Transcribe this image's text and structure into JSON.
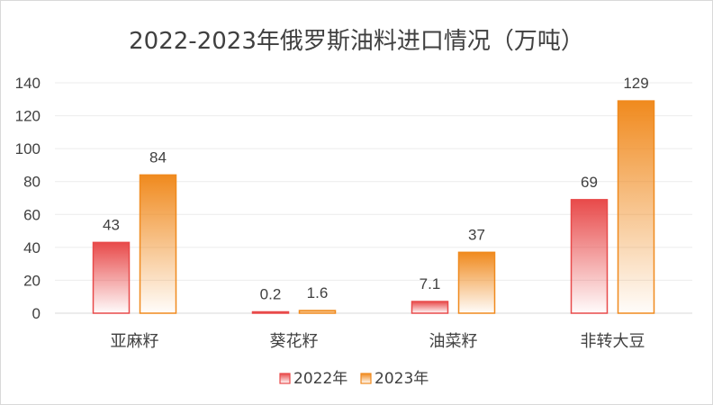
{
  "chart_data": {
    "type": "bar",
    "title": "2022-2023年俄罗斯油料进口情况（万吨）",
    "categories": [
      "亚麻籽",
      "葵花籽",
      "油菜籽",
      "非转大豆"
    ],
    "series": [
      {
        "name": "2022年",
        "values": [
          43,
          0.2,
          7.1,
          69
        ],
        "labels": [
          "43",
          "0.2",
          "7.1",
          "69"
        ],
        "color": "#e84a4a"
      },
      {
        "name": "2023年",
        "values": [
          84,
          1.6,
          37,
          129
        ],
        "labels": [
          "84",
          "1.6",
          "37",
          "129"
        ],
        "color": "#f08a1e"
      }
    ],
    "ylim": [
      0,
      140
    ],
    "yticks": [
      "0",
      "20",
      "40",
      "60",
      "80",
      "100",
      "120",
      "140"
    ],
    "grid": true,
    "legend_position": "bottom",
    "xlabel": "",
    "ylabel": ""
  }
}
